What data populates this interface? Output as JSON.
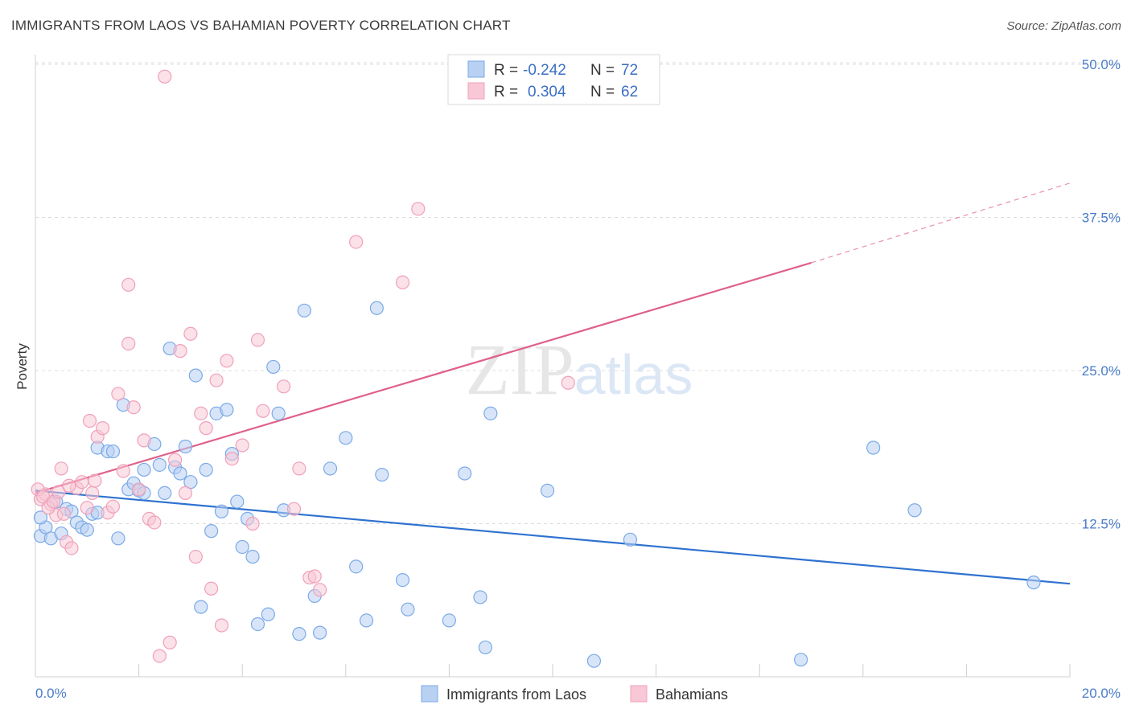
{
  "chart_data": {
    "type": "scatter",
    "title": "IMMIGRANTS FROM LAOS VS BAHAMIAN POVERTY CORRELATION CHART",
    "source": "Source: ZipAtlas.com",
    "xlabel": "",
    "ylabel": "Poverty",
    "xlim": [
      0,
      20
    ],
    "ylim": [
      0,
      50
    ],
    "x_tick_labels": [
      "0.0%",
      "20.0%"
    ],
    "y_ticks": [
      12.5,
      25.0,
      37.5,
      50.0
    ],
    "y_tick_labels": [
      "12.5%",
      "25.0%",
      "37.5%",
      "50.0%"
    ],
    "grid": true,
    "legend_placement": "top-center",
    "stats": [
      {
        "r_label": "R =",
        "r_value": "-0.242",
        "n_label": "N =",
        "n_value": "72"
      },
      {
        "r_label": "R =",
        "r_value": "0.304",
        "n_label": "N =",
        "n_value": "62"
      }
    ],
    "watermark": "ZIPatlas",
    "series": [
      {
        "name": "Immigrants from Laos",
        "color": "#7aaae8",
        "fill": "#b8d0f2",
        "line_color": "#2f72d0",
        "trend": {
          "x": [
            0,
            20
          ],
          "y": [
            15.2,
            7.6
          ]
        },
        "points": [
          [
            0.1,
            11.5
          ],
          [
            0.2,
            12.2
          ],
          [
            0.3,
            11.3
          ],
          [
            0.4,
            14.3
          ],
          [
            0.5,
            11.7
          ],
          [
            0.6,
            13.7
          ],
          [
            0.7,
            13.5
          ],
          [
            0.8,
            12.6
          ],
          [
            0.9,
            12.2
          ],
          [
            1.0,
            12.0
          ],
          [
            1.1,
            13.3
          ],
          [
            1.2,
            13.4
          ],
          [
            1.2,
            18.7
          ],
          [
            1.4,
            18.4
          ],
          [
            1.5,
            18.4
          ],
          [
            1.6,
            11.3
          ],
          [
            1.7,
            22.2
          ],
          [
            1.8,
            15.3
          ],
          [
            1.9,
            15.8
          ],
          [
            2.0,
            15.2
          ],
          [
            2.1,
            16.9
          ],
          [
            2.1,
            15.0
          ],
          [
            2.3,
            19.0
          ],
          [
            2.4,
            17.3
          ],
          [
            2.5,
            15.0
          ],
          [
            2.6,
            26.8
          ],
          [
            2.7,
            17.1
          ],
          [
            2.8,
            16.6
          ],
          [
            2.9,
            18.8
          ],
          [
            3.0,
            15.9
          ],
          [
            3.1,
            24.6
          ],
          [
            3.2,
            5.7
          ],
          [
            3.3,
            16.9
          ],
          [
            3.4,
            11.9
          ],
          [
            3.5,
            21.5
          ],
          [
            3.6,
            13.5
          ],
          [
            3.7,
            21.8
          ],
          [
            3.8,
            18.2
          ],
          [
            3.9,
            14.3
          ],
          [
            4.0,
            10.6
          ],
          [
            4.1,
            12.9
          ],
          [
            4.2,
            9.8
          ],
          [
            4.3,
            4.3
          ],
          [
            4.5,
            5.1
          ],
          [
            4.6,
            25.3
          ],
          [
            4.7,
            21.5
          ],
          [
            4.8,
            13.6
          ],
          [
            5.1,
            3.5
          ],
          [
            5.2,
            29.9
          ],
          [
            5.4,
            6.6
          ],
          [
            5.5,
            3.6
          ],
          [
            5.7,
            17.0
          ],
          [
            6.0,
            19.5
          ],
          [
            6.2,
            9.0
          ],
          [
            6.4,
            4.6
          ],
          [
            6.6,
            30.1
          ],
          [
            6.7,
            16.5
          ],
          [
            7.1,
            7.9
          ],
          [
            7.2,
            5.5
          ],
          [
            8.0,
            4.6
          ],
          [
            8.3,
            16.6
          ],
          [
            8.6,
            6.5
          ],
          [
            8.7,
            2.4
          ],
          [
            8.8,
            21.5
          ],
          [
            9.9,
            15.2
          ],
          [
            10.8,
            1.3
          ],
          [
            11.5,
            11.2
          ],
          [
            14.8,
            1.4
          ],
          [
            16.2,
            18.7
          ],
          [
            17.0,
            13.6
          ],
          [
            19.3,
            7.7
          ],
          [
            0.1,
            13.0
          ]
        ]
      },
      {
        "name": "Bahamians",
        "color": "#f0a0ba",
        "fill": "#f8c8d6",
        "line_color": "#e0608a",
        "trend": {
          "x": [
            0,
            15
          ],
          "y": [
            15.0,
            33.8
          ]
        },
        "trend_dashed": {
          "x": [
            15,
            20
          ],
          "y": [
            33.8,
            40.3
          ]
        },
        "points": [
          [
            0.1,
            14.5
          ],
          [
            0.2,
            14.9
          ],
          [
            0.3,
            14.1
          ],
          [
            0.4,
            13.2
          ],
          [
            0.5,
            17.0
          ],
          [
            0.6,
            11.0
          ],
          [
            0.7,
            10.5
          ],
          [
            0.8,
            15.4
          ],
          [
            0.9,
            15.9
          ],
          [
            1.0,
            13.8
          ],
          [
            1.1,
            15.0
          ],
          [
            1.2,
            19.6
          ],
          [
            1.3,
            20.3
          ],
          [
            1.4,
            13.4
          ],
          [
            1.5,
            13.9
          ],
          [
            1.6,
            23.1
          ],
          [
            1.7,
            16.8
          ],
          [
            1.8,
            27.2
          ],
          [
            1.8,
            32.0
          ],
          [
            1.9,
            22.0
          ],
          [
            2.0,
            15.3
          ],
          [
            2.1,
            19.3
          ],
          [
            2.2,
            12.9
          ],
          [
            2.3,
            12.6
          ],
          [
            2.4,
            1.7
          ],
          [
            2.5,
            49.0
          ],
          [
            2.6,
            2.8
          ],
          [
            2.7,
            17.7
          ],
          [
            2.8,
            26.6
          ],
          [
            2.9,
            15.0
          ],
          [
            3.0,
            28.0
          ],
          [
            3.1,
            9.8
          ],
          [
            3.2,
            21.5
          ],
          [
            3.3,
            20.3
          ],
          [
            3.4,
            7.2
          ],
          [
            3.5,
            24.2
          ],
          [
            3.6,
            4.2
          ],
          [
            3.7,
            25.8
          ],
          [
            3.8,
            17.8
          ],
          [
            4.0,
            18.9
          ],
          [
            4.2,
            12.5
          ],
          [
            4.3,
            27.5
          ],
          [
            4.4,
            21.7
          ],
          [
            4.8,
            23.7
          ],
          [
            5.0,
            13.7
          ],
          [
            5.1,
            17.0
          ],
          [
            5.3,
            8.1
          ],
          [
            5.4,
            8.2
          ],
          [
            5.5,
            7.1
          ],
          [
            6.2,
            35.5
          ],
          [
            7.1,
            32.2
          ],
          [
            7.4,
            38.2
          ],
          [
            10.3,
            24.0
          ],
          [
            0.05,
            15.3
          ],
          [
            0.15,
            14.7
          ],
          [
            0.25,
            13.8
          ],
          [
            0.35,
            14.3
          ],
          [
            0.45,
            15.1
          ],
          [
            0.55,
            13.3
          ],
          [
            0.65,
            15.6
          ],
          [
            1.05,
            20.9
          ],
          [
            1.15,
            16.0
          ]
        ]
      }
    ]
  }
}
